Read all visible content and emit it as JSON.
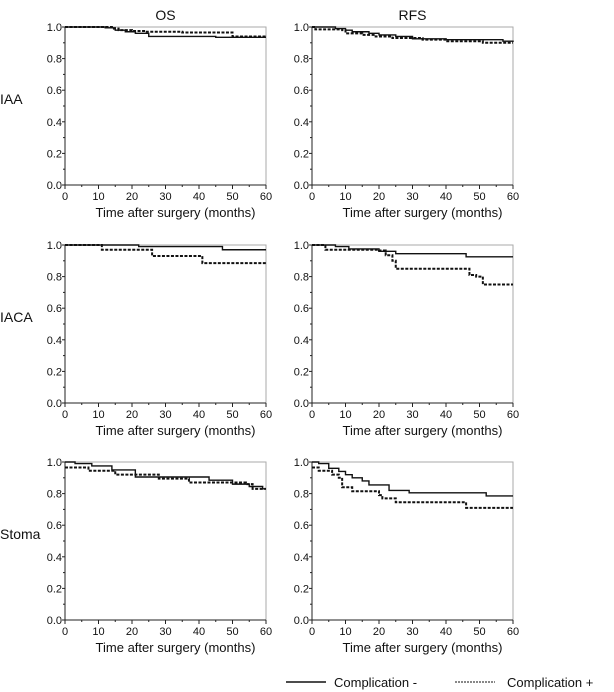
{
  "chart_data": {
    "type": "line",
    "subtype": "kaplan-meier step",
    "column_titles": [
      "OS",
      "RFS"
    ],
    "row_labels": [
      "IAA",
      "IACA",
      "Stoma"
    ],
    "xlabel": "Time after surgery (months)",
    "xlim": [
      0,
      60
    ],
    "ylim": [
      0,
      1
    ],
    "xticks": [
      "0",
      "10",
      "20",
      "30",
      "40",
      "50",
      "60"
    ],
    "yticks": [
      "0.0",
      "0.2",
      "0.4",
      "0.6",
      "0.8",
      "1.0"
    ],
    "legend": {
      "placement": "bottom-right",
      "entries": [
        {
          "label": "Complication -",
          "style": "solid"
        },
        {
          "label": "Complication +",
          "style": "dashed"
        }
      ]
    },
    "panels": [
      {
        "row": "IAA",
        "col": "OS",
        "series": [
          {
            "name": "Complication -",
            "points": [
              [
                0,
                1
              ],
              [
                12,
                0.995
              ],
              [
                15,
                0.98
              ],
              [
                18,
                0.97
              ],
              [
                21,
                0.96
              ],
              [
                25,
                0.94
              ],
              [
                45,
                0.935
              ],
              [
                60,
                0.935
              ]
            ]
          },
          {
            "name": "Complication +",
            "points": [
              [
                0,
                1
              ],
              [
                14,
                0.99
              ],
              [
                16,
                0.98
              ],
              [
                20,
                0.975
              ],
              [
                24,
                0.97
              ],
              [
                35,
                0.965
              ],
              [
                50,
                0.94
              ],
              [
                60,
                0.94
              ]
            ]
          }
        ]
      },
      {
        "row": "IAA",
        "col": "RFS",
        "series": [
          {
            "name": "Complication -",
            "points": [
              [
                0,
                1
              ],
              [
                7,
                0.99
              ],
              [
                10,
                0.98
              ],
              [
                12,
                0.97
              ],
              [
                17,
                0.96
              ],
              [
                20,
                0.95
              ],
              [
                25,
                0.94
              ],
              [
                30,
                0.925
              ],
              [
                40,
                0.92
              ],
              [
                57,
                0.91
              ],
              [
                60,
                0.905
              ]
            ]
          },
          {
            "name": "Complication +",
            "points": [
              [
                0,
                1
              ],
              [
                1,
                0.985
              ],
              [
                9,
                0.98
              ],
              [
                10,
                0.96
              ],
              [
                15,
                0.95
              ],
              [
                19,
                0.94
              ],
              [
                24,
                0.93
              ],
              [
                33,
                0.92
              ],
              [
                40,
                0.91
              ],
              [
                51,
                0.9
              ],
              [
                60,
                0.9
              ]
            ]
          }
        ]
      },
      {
        "row": "IACA",
        "col": "OS",
        "series": [
          {
            "name": "Complication -",
            "points": [
              [
                0,
                1
              ],
              [
                22,
                0.99
              ],
              [
                47,
                0.97
              ],
              [
                60,
                0.97
              ]
            ]
          },
          {
            "name": "Complication +",
            "points": [
              [
                0,
                1
              ],
              [
                11,
                0.97
              ],
              [
                26,
                0.93
              ],
              [
                41,
                0.885
              ],
              [
                60,
                0.885
              ]
            ]
          }
        ]
      },
      {
        "row": "IACA",
        "col": "RFS",
        "series": [
          {
            "name": "Complication -",
            "points": [
              [
                0,
                1
              ],
              [
                7,
                0.99
              ],
              [
                11,
                0.975
              ],
              [
                20,
                0.96
              ],
              [
                25,
                0.945
              ],
              [
                46,
                0.925
              ],
              [
                60,
                0.925
              ]
            ]
          },
          {
            "name": "Complication +",
            "points": [
              [
                0,
                1
              ],
              [
                4,
                0.97
              ],
              [
                20,
                0.965
              ],
              [
                22,
                0.935
              ],
              [
                24,
                0.9
              ],
              [
                25,
                0.85
              ],
              [
                47,
                0.81
              ],
              [
                49,
                0.8
              ],
              [
                51,
                0.75
              ],
              [
                60,
                0.75
              ]
            ]
          }
        ]
      },
      {
        "row": "Stoma",
        "col": "OS",
        "series": [
          {
            "name": "Complication -",
            "points": [
              [
                0,
                1
              ],
              [
                3,
                0.99
              ],
              [
                8,
                0.975
              ],
              [
                14,
                0.95
              ],
              [
                21,
                0.905
              ],
              [
                43,
                0.885
              ],
              [
                50,
                0.86
              ],
              [
                55,
                0.845
              ],
              [
                59,
                0.83
              ],
              [
                60,
                0.83
              ]
            ]
          },
          {
            "name": "Complication +",
            "points": [
              [
                0,
                0.965
              ],
              [
                7,
                0.945
              ],
              [
                15,
                0.92
              ],
              [
                28,
                0.895
              ],
              [
                37,
                0.87
              ],
              [
                54,
                0.86
              ],
              [
                56,
                0.83
              ],
              [
                60,
                0.83
              ]
            ]
          }
        ]
      },
      {
        "row": "Stoma",
        "col": "RFS",
        "series": [
          {
            "name": "Complication -",
            "points": [
              [
                0,
                1
              ],
              [
                2,
                0.99
              ],
              [
                5,
                0.96
              ],
              [
                8,
                0.94
              ],
              [
                10,
                0.92
              ],
              [
                12,
                0.9
              ],
              [
                15,
                0.88
              ],
              [
                17,
                0.855
              ],
              [
                23,
                0.82
              ],
              [
                29,
                0.805
              ],
              [
                52,
                0.785
              ],
              [
                60,
                0.785
              ]
            ]
          },
          {
            "name": "Complication +",
            "points": [
              [
                0,
                0.965
              ],
              [
                2,
                0.945
              ],
              [
                6,
                0.92
              ],
              [
                8,
                0.9
              ],
              [
                9,
                0.84
              ],
              [
                12,
                0.815
              ],
              [
                20,
                0.79
              ],
              [
                21,
                0.77
              ],
              [
                25,
                0.745
              ],
              [
                46,
                0.71
              ],
              [
                60,
                0.71
              ]
            ]
          }
        ]
      }
    ]
  }
}
